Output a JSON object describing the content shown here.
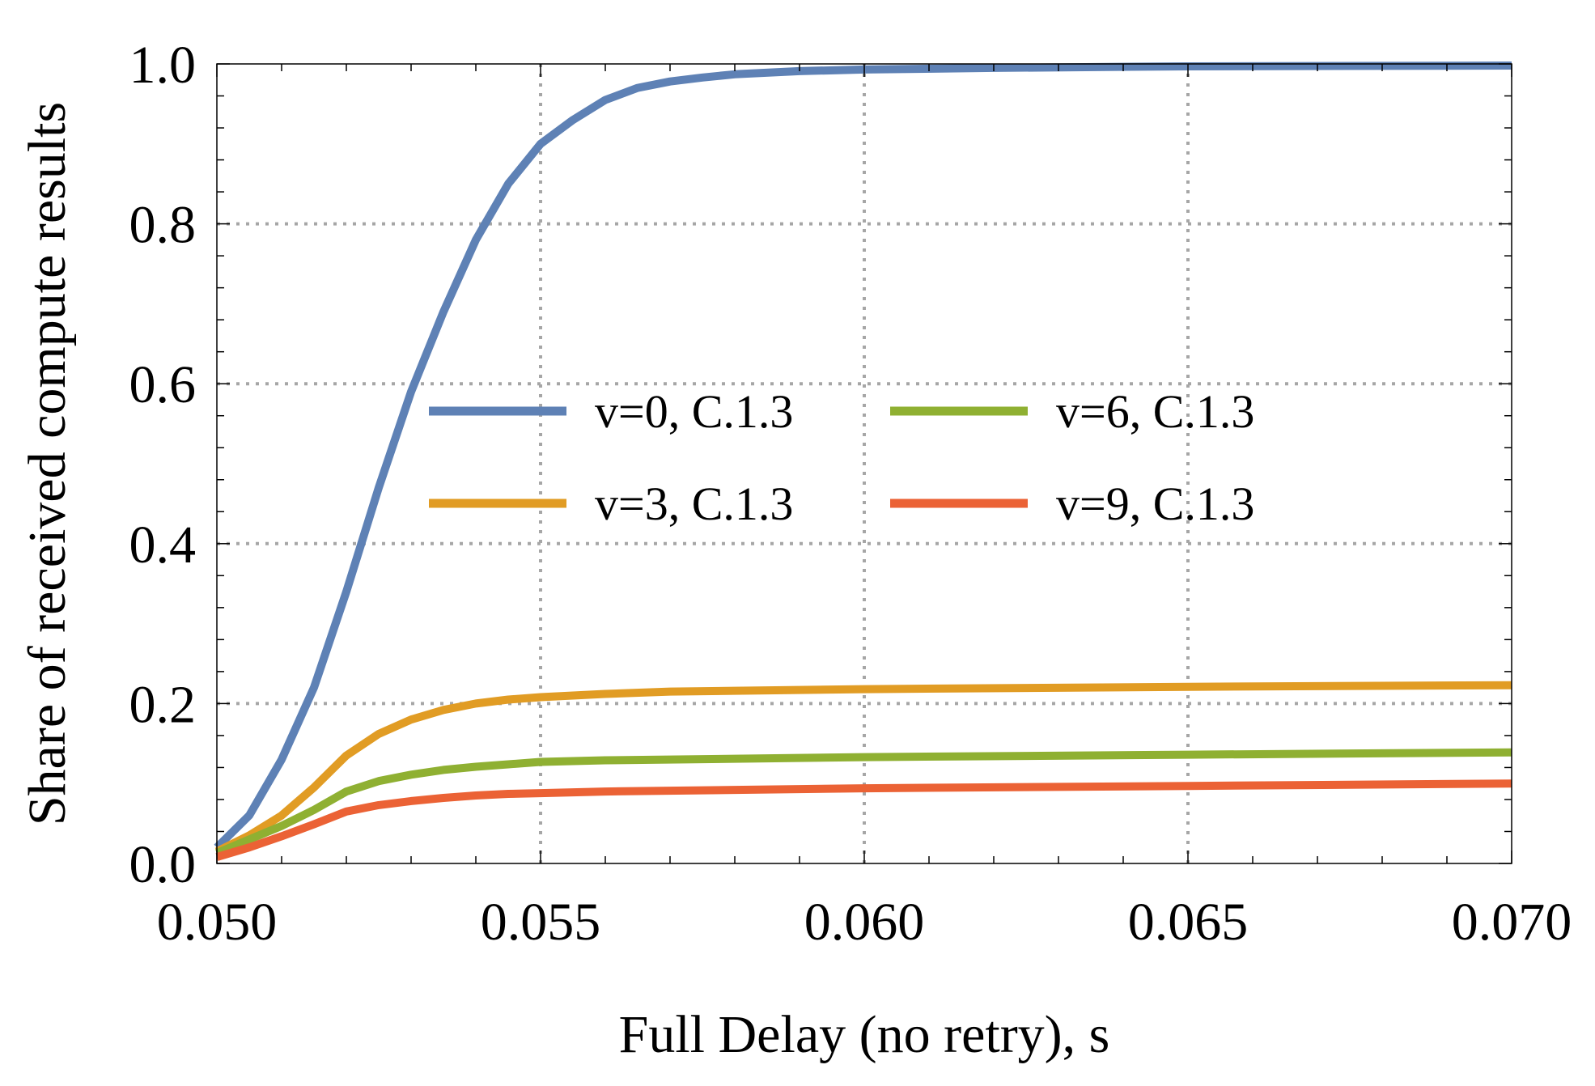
{
  "chart_data": {
    "type": "line",
    "title": "",
    "xlabel": "Full Delay (no retry), s",
    "ylabel": "Share of received compute results",
    "xlim": [
      0.05,
      0.07
    ],
    "ylim": [
      0.0,
      1.0
    ],
    "x_ticks": [
      0.05,
      0.055,
      0.06,
      0.065,
      0.07
    ],
    "x_tick_labels": [
      "0.050",
      "0.055",
      "0.060",
      "0.065",
      "0.070"
    ],
    "y_ticks": [
      0.0,
      0.2,
      0.4,
      0.6,
      0.8,
      1.0
    ],
    "y_tick_labels": [
      "0.0",
      "0.2",
      "0.4",
      "0.6",
      "0.8",
      "1.0"
    ],
    "grid": true,
    "legend_position": "center",
    "series": [
      {
        "name": "v=0, C.1.3",
        "color": "#5E81B5",
        "x": [
          0.05,
          0.0505,
          0.051,
          0.0515,
          0.052,
          0.0525,
          0.053,
          0.0535,
          0.054,
          0.0545,
          0.055,
          0.0555,
          0.056,
          0.0565,
          0.057,
          0.0575,
          0.058,
          0.059,
          0.06,
          0.062,
          0.065,
          0.07
        ],
        "y": [
          0.02,
          0.06,
          0.13,
          0.22,
          0.34,
          0.47,
          0.59,
          0.69,
          0.78,
          0.85,
          0.9,
          0.93,
          0.955,
          0.97,
          0.978,
          0.983,
          0.987,
          0.991,
          0.993,
          0.995,
          0.997,
          0.998
        ]
      },
      {
        "name": "v=3, C.1.3",
        "color": "#E19C24",
        "x": [
          0.05,
          0.0505,
          0.051,
          0.0515,
          0.052,
          0.0525,
          0.053,
          0.0535,
          0.054,
          0.0545,
          0.055,
          0.056,
          0.057,
          0.058,
          0.06,
          0.065,
          0.07
        ],
        "y": [
          0.015,
          0.035,
          0.06,
          0.095,
          0.135,
          0.162,
          0.18,
          0.192,
          0.2,
          0.205,
          0.208,
          0.212,
          0.215,
          0.216,
          0.218,
          0.221,
          0.223
        ]
      },
      {
        "name": "v=6, C.1.3",
        "color": "#8FB032",
        "x": [
          0.05,
          0.0505,
          0.051,
          0.0515,
          0.052,
          0.0525,
          0.053,
          0.0535,
          0.054,
          0.0545,
          0.055,
          0.056,
          0.058,
          0.06,
          0.065,
          0.07
        ],
        "y": [
          0.013,
          0.03,
          0.047,
          0.067,
          0.09,
          0.103,
          0.111,
          0.117,
          0.121,
          0.124,
          0.127,
          0.129,
          0.131,
          0.133,
          0.136,
          0.139
        ]
      },
      {
        "name": "v=9, C.1.3",
        "color": "#EB6235",
        "x": [
          0.05,
          0.0505,
          0.051,
          0.0515,
          0.052,
          0.0525,
          0.053,
          0.0535,
          0.054,
          0.0545,
          0.055,
          0.056,
          0.058,
          0.06,
          0.065,
          0.07
        ],
        "y": [
          0.008,
          0.02,
          0.034,
          0.049,
          0.065,
          0.073,
          0.078,
          0.082,
          0.085,
          0.087,
          0.088,
          0.09,
          0.092,
          0.094,
          0.097,
          0.1
        ]
      }
    ]
  }
}
